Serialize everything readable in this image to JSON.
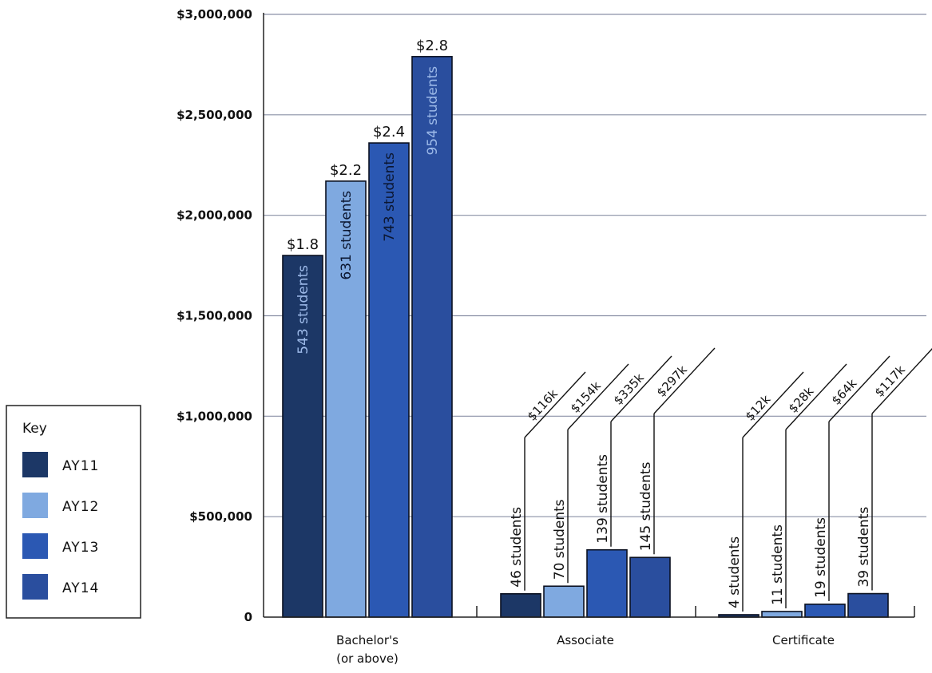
{
  "chart_data": {
    "type": "bar",
    "ylim": [
      0,
      3000000
    ],
    "yticks": [
      0,
      500000,
      1000000,
      1500000,
      2000000,
      2500000,
      3000000
    ],
    "ytick_labels": [
      "0",
      "$500,000",
      "$1,000,000",
      "$1,500,000",
      "$2,000,000",
      "$2,500,000",
      "$3,000,000"
    ],
    "grid": true,
    "legend_position": "left",
    "legend_title": "Key",
    "categories": [
      {
        "lines": [
          "Bachelor's",
          "(or above)"
        ]
      },
      {
        "lines": [
          "Associate"
        ]
      },
      {
        "lines": [
          "Certificate"
        ]
      }
    ],
    "series": [
      {
        "name": "AY11",
        "color": "#1c3766"
      },
      {
        "name": "AY12",
        "color": "#7fa9e0"
      },
      {
        "name": "AY13",
        "color": "#2b58b3"
      },
      {
        "name": "AY14",
        "color": "#2a4e9e"
      }
    ],
    "values": [
      [
        1800000,
        2170000,
        2360000,
        2790000
      ],
      [
        116000,
        154000,
        335000,
        297000
      ],
      [
        12000,
        28000,
        64000,
        117000
      ]
    ],
    "value_labels": [
      [
        "$1.8",
        "$2.2",
        "$2.4",
        "$2.8"
      ],
      [
        "$116k",
        "$154k",
        "$335k",
        "$297k"
      ],
      [
        "$12k",
        "$28k",
        "$64k",
        "$117k"
      ]
    ],
    "student_labels": [
      [
        "543 students",
        "631 students",
        "743 students",
        "954 students"
      ],
      [
        "46 students",
        "70 students",
        "139 students",
        "145 students"
      ],
      [
        "4 students",
        "11 students",
        "19 students",
        "39 students"
      ]
    ]
  }
}
